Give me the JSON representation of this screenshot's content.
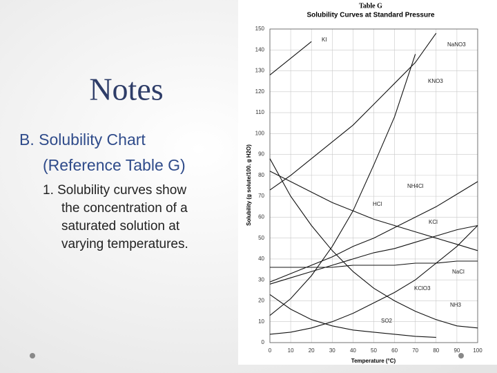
{
  "slide": {
    "title": "Notes",
    "heading": [
      "B. Solubility Chart",
      "(Reference Table G)"
    ],
    "point": [
      "1. Solubility curves show",
      "the concentration of a",
      "saturated solution at",
      "varying temperatures."
    ]
  },
  "chart_data": {
    "type": "line",
    "title": "Table G",
    "subtitle": "Solubility Curves at Standard Pressure",
    "x_label": "Temperature (°C)",
    "y_label": "Solubility (g solute/100. g H2O)",
    "x": [
      0,
      10,
      20,
      30,
      40,
      50,
      60,
      70,
      80,
      90,
      100
    ],
    "xlim": [
      0,
      100
    ],
    "xticks": [
      0,
      10,
      20,
      30,
      40,
      50,
      60,
      70,
      80,
      90,
      100
    ],
    "ylim": [
      0,
      150
    ],
    "yticks": [
      0,
      10,
      20,
      30,
      40,
      50,
      60,
      70,
      80,
      90,
      100,
      110,
      120,
      130,
      140,
      150
    ],
    "series": [
      {
        "name": "KI",
        "color": "#111111",
        "values": [
          128,
          136,
          144,
          null,
          null,
          null,
          null,
          null,
          null,
          null,
          null
        ]
      },
      {
        "name": "NaNO3",
        "color": "#111111",
        "values": [
          73,
          80,
          88,
          96,
          104,
          114,
          124,
          134,
          148,
          null,
          null
        ]
      },
      {
        "name": "KNO3",
        "color": "#111111",
        "values": [
          13,
          21,
          32,
          46,
          63,
          85,
          108,
          138,
          null,
          null,
          null
        ]
      },
      {
        "name": "NH4Cl",
        "color": "#111111",
        "values": [
          29,
          33,
          37,
          41,
          46,
          50,
          55,
          60,
          65,
          71,
          77
        ]
      },
      {
        "name": "HCl",
        "color": "#111111",
        "values": [
          82,
          77,
          72,
          67,
          63,
          59,
          56,
          53,
          50,
          47,
          44
        ]
      },
      {
        "name": "KCl",
        "color": "#111111",
        "values": [
          28,
          31,
          34,
          37,
          40,
          43,
          45,
          48,
          51,
          54,
          56
        ]
      },
      {
        "name": "NaCl",
        "color": "#111111",
        "values": [
          36,
          36,
          36,
          36,
          37,
          37,
          37,
          38,
          38,
          39,
          39
        ]
      },
      {
        "name": "KClO3",
        "color": "#111111",
        "values": [
          4,
          5,
          7,
          10,
          14,
          19,
          24,
          30,
          38,
          46,
          56
        ]
      },
      {
        "name": "NH3",
        "color": "#111111",
        "values": [
          88,
          70,
          56,
          44,
          34,
          26,
          20,
          15,
          11,
          8,
          7
        ]
      },
      {
        "name": "SO2",
        "color": "#111111",
        "values": [
          23,
          16,
          11,
          8,
          6,
          5,
          4,
          3,
          2.5,
          null,
          null
        ]
      }
    ]
  }
}
